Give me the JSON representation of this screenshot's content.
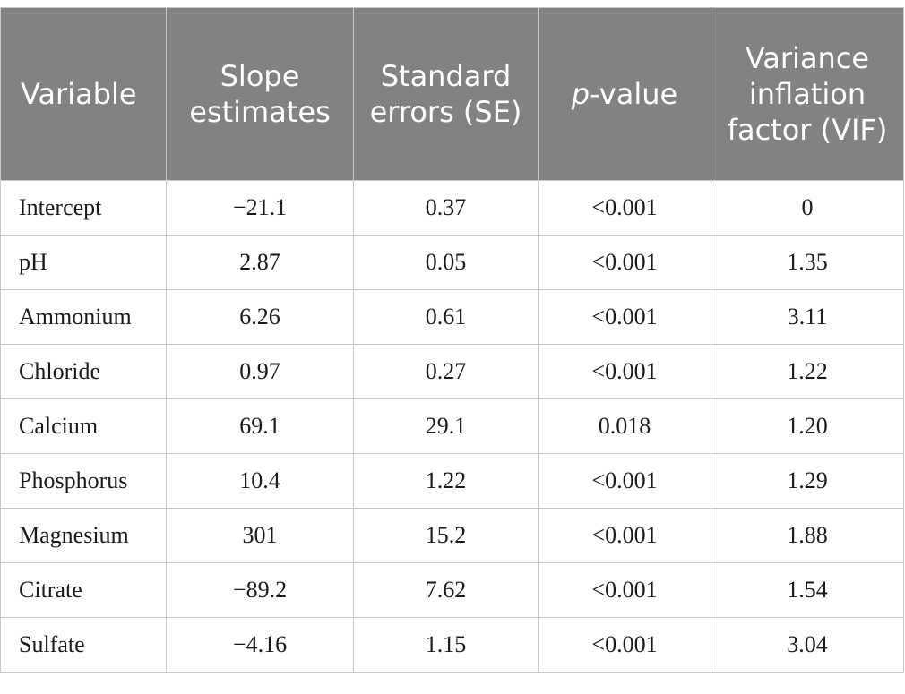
{
  "headers": {
    "variable": "Variable",
    "slope": "Slope estimates",
    "se": "Standard errors (SE)",
    "pvalue_italic": "p",
    "pvalue_rest": "-value",
    "vif": "Variance inflation factor (VIF)"
  },
  "rows": [
    {
      "variable": "Intercept",
      "slope": "−21.1",
      "se": "0.37",
      "p": "<0.001",
      "vif": "0"
    },
    {
      "variable": "pH",
      "slope": "2.87",
      "se": "0.05",
      "p": "<0.001",
      "vif": "1.35"
    },
    {
      "variable": "Ammonium",
      "slope": "6.26",
      "se": "0.61",
      "p": "<0.001",
      "vif": "3.11"
    },
    {
      "variable": "Chloride",
      "slope": "0.97",
      "se": "0.27",
      "p": "<0.001",
      "vif": "1.22"
    },
    {
      "variable": "Calcium",
      "slope": "69.1",
      "se": "29.1",
      "p": "0.018",
      "vif": "1.20"
    },
    {
      "variable": "Phosphorus",
      "slope": "10.4",
      "se": "1.22",
      "p": "<0.001",
      "vif": "1.29"
    },
    {
      "variable": "Magnesium",
      "slope": "301",
      "se": "15.2",
      "p": "<0.001",
      "vif": "1.88"
    },
    {
      "variable": "Citrate",
      "slope": "−89.2",
      "se": "7.62",
      "p": "<0.001",
      "vif": "1.54"
    },
    {
      "variable": "Sulfate",
      "slope": "−4.16",
      "se": "1.15",
      "p": "<0.001",
      "vif": "3.04"
    }
  ]
}
